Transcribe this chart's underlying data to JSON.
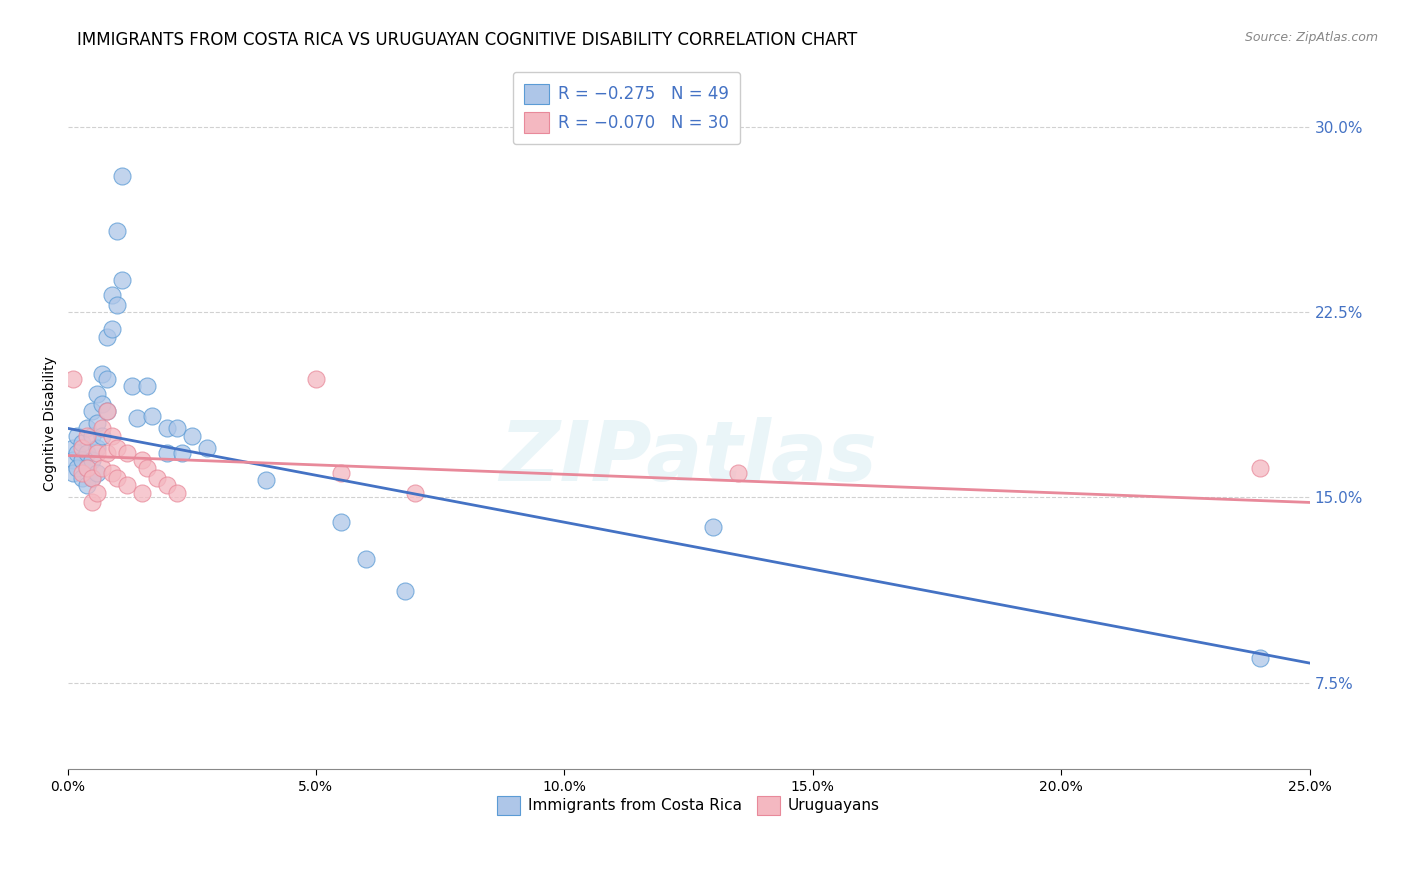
{
  "title": "IMMIGRANTS FROM COSTA RICA VS URUGUAYAN COGNITIVE DISABILITY CORRELATION CHART",
  "source": "Source: ZipAtlas.com",
  "xlabel_ticks": [
    "0.0%",
    "5.0%",
    "10.0%",
    "15.0%",
    "20.0%",
    "25.0%"
  ],
  "ylabel_ticks": [
    "7.5%",
    "15.0%",
    "22.5%",
    "30.0%"
  ],
  "ylabel_label": "Cognitive Disability",
  "xlim": [
    0.0,
    0.25
  ],
  "ylim": [
    0.04,
    0.32
  ],
  "blue_scatter": [
    [
      0.001,
      0.17
    ],
    [
      0.001,
      0.165
    ],
    [
      0.001,
      0.16
    ],
    [
      0.002,
      0.175
    ],
    [
      0.002,
      0.168
    ],
    [
      0.002,
      0.162
    ],
    [
      0.003,
      0.172
    ],
    [
      0.003,
      0.165
    ],
    [
      0.003,
      0.158
    ],
    [
      0.004,
      0.178
    ],
    [
      0.004,
      0.168
    ],
    [
      0.004,
      0.162
    ],
    [
      0.004,
      0.155
    ],
    [
      0.005,
      0.185
    ],
    [
      0.005,
      0.175
    ],
    [
      0.005,
      0.165
    ],
    [
      0.005,
      0.158
    ],
    [
      0.006,
      0.192
    ],
    [
      0.006,
      0.18
    ],
    [
      0.006,
      0.17
    ],
    [
      0.006,
      0.16
    ],
    [
      0.007,
      0.2
    ],
    [
      0.007,
      0.188
    ],
    [
      0.007,
      0.175
    ],
    [
      0.008,
      0.215
    ],
    [
      0.008,
      0.198
    ],
    [
      0.008,
      0.185
    ],
    [
      0.009,
      0.232
    ],
    [
      0.009,
      0.218
    ],
    [
      0.01,
      0.258
    ],
    [
      0.01,
      0.228
    ],
    [
      0.011,
      0.28
    ],
    [
      0.011,
      0.238
    ],
    [
      0.013,
      0.195
    ],
    [
      0.014,
      0.182
    ],
    [
      0.016,
      0.195
    ],
    [
      0.017,
      0.183
    ],
    [
      0.02,
      0.178
    ],
    [
      0.02,
      0.168
    ],
    [
      0.022,
      0.178
    ],
    [
      0.023,
      0.168
    ],
    [
      0.025,
      0.175
    ],
    [
      0.028,
      0.17
    ],
    [
      0.04,
      0.157
    ],
    [
      0.055,
      0.14
    ],
    [
      0.06,
      0.125
    ],
    [
      0.068,
      0.112
    ],
    [
      0.13,
      0.138
    ],
    [
      0.24,
      0.085
    ]
  ],
  "pink_scatter": [
    [
      0.001,
      0.198
    ],
    [
      0.003,
      0.17
    ],
    [
      0.003,
      0.16
    ],
    [
      0.004,
      0.175
    ],
    [
      0.004,
      0.162
    ],
    [
      0.005,
      0.158
    ],
    [
      0.005,
      0.148
    ],
    [
      0.006,
      0.168
    ],
    [
      0.006,
      0.152
    ],
    [
      0.007,
      0.178
    ],
    [
      0.007,
      0.162
    ],
    [
      0.008,
      0.185
    ],
    [
      0.008,
      0.168
    ],
    [
      0.009,
      0.175
    ],
    [
      0.009,
      0.16
    ],
    [
      0.01,
      0.17
    ],
    [
      0.01,
      0.158
    ],
    [
      0.012,
      0.168
    ],
    [
      0.012,
      0.155
    ],
    [
      0.015,
      0.165
    ],
    [
      0.015,
      0.152
    ],
    [
      0.016,
      0.162
    ],
    [
      0.018,
      0.158
    ],
    [
      0.02,
      0.155
    ],
    [
      0.022,
      0.152
    ],
    [
      0.05,
      0.198
    ],
    [
      0.055,
      0.16
    ],
    [
      0.07,
      0.152
    ],
    [
      0.135,
      0.16
    ],
    [
      0.24,
      0.162
    ]
  ],
  "blue_line_x": [
    0.0,
    0.25
  ],
  "blue_line_y": [
    0.178,
    0.083
  ],
  "pink_line_x": [
    0.0,
    0.25
  ],
  "pink_line_y": [
    0.167,
    0.148
  ],
  "blue_fill_color": "#aec6e8",
  "blue_edge_color": "#5b9bd5",
  "pink_fill_color": "#f4b8c1",
  "pink_edge_color": "#e8899a",
  "blue_line_color": "#4472c4",
  "pink_line_color": "#e8899a",
  "legend_blue_r": "R = −0.275",
  "legend_blue_n": "N = 49",
  "legend_pink_r": "R = −0.070",
  "legend_pink_n": "N = 30",
  "legend_label_blue": "Immigrants from Costa Rica",
  "legend_label_pink": "Uruguayans",
  "watermark": "ZIPatlas",
  "grid_color": "#cccccc",
  "background_color": "#ffffff",
  "title_fontsize": 12,
  "axis_fontsize": 10,
  "tick_fontsize": 10,
  "right_tick_color": "#4472c4",
  "legend_r_color": "#4472c4",
  "source_color": "#888888"
}
